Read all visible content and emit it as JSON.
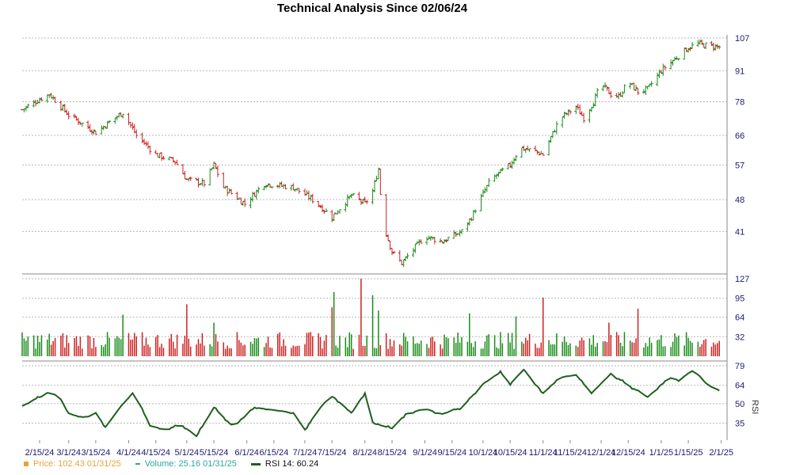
{
  "title": "Technical Analysis Since 02/06/24",
  "colors": {
    "up": "#1a8c1a",
    "down": "#cc2222",
    "rsi": "#1f5f1f",
    "grid": "#b8b8b8",
    "axis_text": "#1a1a6e",
    "price_legend": "#e8a33c",
    "volume_legend": "#2aa6a6"
  },
  "legend": {
    "price": "Price: 102.43  01/31/25",
    "volume": "Volume: 25.16  01/31/25",
    "rsi": "RSI 14: 60.24"
  },
  "chart_data": [
    {
      "type": "ohlc",
      "name": "Price",
      "y_ticks": [
        41,
        48,
        57,
        66,
        78,
        91,
        107
      ],
      "x_tick_labels": [
        "2/15/24",
        "3/1/24",
        "3/15/24",
        "4/1/24",
        "4/15/24",
        "5/1/24",
        "5/15/24",
        "6/1/24",
        "6/15/24",
        "7/1/24",
        "7/15/24",
        "8/1/24",
        "8/15/24",
        "9/1/24",
        "9/15/24",
        "10/1/24",
        "10/15/24",
        "11/1/24",
        "11/15/24",
        "12/1/24",
        "12/15/24",
        "1/1/25",
        "1/15/25",
        "2/1/25"
      ],
      "anchors": [
        {
          "date": "2/6/24",
          "close": 75
        },
        {
          "date": "2/15/24",
          "close": 79
        },
        {
          "date": "2/20/24",
          "close": 81
        },
        {
          "date": "3/1/24",
          "close": 73
        },
        {
          "date": "3/15/24",
          "close": 67
        },
        {
          "date": "3/25/24",
          "close": 72
        },
        {
          "date": "3/29/24",
          "close": 74
        },
        {
          "date": "4/5/24",
          "close": 66
        },
        {
          "date": "4/15/24",
          "close": 60
        },
        {
          "date": "4/25/24",
          "close": 58
        },
        {
          "date": "5/1/24",
          "close": 53
        },
        {
          "date": "5/10/24",
          "close": 52
        },
        {
          "date": "5/15/24",
          "close": 57
        },
        {
          "date": "5/20/24",
          "close": 51
        },
        {
          "date": "5/31/24",
          "close": 47
        },
        {
          "date": "6/10/24",
          "close": 52
        },
        {
          "date": "6/25/24",
          "close": 51
        },
        {
          "date": "7/5/24",
          "close": 48
        },
        {
          "date": "7/15/24",
          "close": 44
        },
        {
          "date": "7/25/24",
          "close": 49
        },
        {
          "date": "8/1/24",
          "close": 47
        },
        {
          "date": "8/5/24",
          "close": 50
        },
        {
          "date": "8/8/24",
          "close": 56
        },
        {
          "date": "8/10/24",
          "close": 43
        },
        {
          "date": "8/15/24",
          "close": 37
        },
        {
          "date": "8/20/24",
          "close": 35
        },
        {
          "date": "9/1/24",
          "close": 40
        },
        {
          "date": "9/10/24",
          "close": 39
        },
        {
          "date": "9/20/24",
          "close": 41
        },
        {
          "date": "9/25/24",
          "close": 44
        },
        {
          "date": "10/5/24",
          "close": 53
        },
        {
          "date": "10/15/24",
          "close": 57
        },
        {
          "date": "10/20/24",
          "close": 62
        },
        {
          "date": "10/28/24",
          "close": 61
        },
        {
          "date": "11/1/24",
          "close": 60
        },
        {
          "date": "11/10/24",
          "close": 72
        },
        {
          "date": "11/18/24",
          "close": 76
        },
        {
          "date": "11/22/24",
          "close": 72
        },
        {
          "date": "11/27/24",
          "close": 78
        },
        {
          "date": "12/1/24",
          "close": 85
        },
        {
          "date": "12/6/24",
          "close": 81
        },
        {
          "date": "12/10/24",
          "close": 80
        },
        {
          "date": "12/15/24",
          "close": 86
        },
        {
          "date": "12/20/24",
          "close": 82
        },
        {
          "date": "12/25/24",
          "close": 83
        },
        {
          "date": "1/1/25",
          "close": 91
        },
        {
          "date": "1/10/25",
          "close": 98
        },
        {
          "date": "1/15/25",
          "close": 102
        },
        {
          "date": "1/20/25",
          "close": 104
        },
        {
          "date": "1/25/25",
          "close": 103
        },
        {
          "date": "1/31/25",
          "close": 102.43
        }
      ]
    },
    {
      "type": "bar",
      "name": "Volume",
      "y_ticks": [
        32,
        64,
        95,
        127
      ],
      "base_range": [
        12,
        40
      ],
      "spikes": [
        {
          "date": "3/29/24",
          "value": 68
        },
        {
          "date": "5/1/24",
          "value": 85
        },
        {
          "date": "5/15/24",
          "value": 55
        },
        {
          "date": "7/15/24",
          "value": 80
        },
        {
          "date": "7/16/24",
          "value": 105
        },
        {
          "date": "7/30/24",
          "value": 127
        },
        {
          "date": "8/5/24",
          "value": 100
        },
        {
          "date": "8/8/24",
          "value": 75
        },
        {
          "date": "9/24/24",
          "value": 70
        },
        {
          "date": "10/18/24",
          "value": 65
        },
        {
          "date": "11/1/24",
          "value": 96
        },
        {
          "date": "11/3/24",
          "value": 75
        },
        {
          "date": "12/20/24",
          "value": 78
        },
        {
          "date": "12/5/24",
          "value": 55
        }
      ],
      "last_value": 25.16
    },
    {
      "type": "line",
      "name": "RSI 14",
      "y_ticks": [
        35,
        50,
        64,
        79
      ],
      "anchors": [
        {
          "date": "2/6/24",
          "v": 48
        },
        {
          "date": "2/12/24",
          "v": 53
        },
        {
          "date": "2/20/24",
          "v": 58
        },
        {
          "date": "2/25/24",
          "v": 56
        },
        {
          "date": "3/1/24",
          "v": 42
        },
        {
          "date": "3/10/24",
          "v": 39
        },
        {
          "date": "3/15/24",
          "v": 43
        },
        {
          "date": "3/20/24",
          "v": 32
        },
        {
          "date": "3/28/24",
          "v": 48
        },
        {
          "date": "4/3/24",
          "v": 58
        },
        {
          "date": "4/8/24",
          "v": 46
        },
        {
          "date": "4/12/24",
          "v": 33
        },
        {
          "date": "4/20/24",
          "v": 30
        },
        {
          "date": "4/28/24",
          "v": 34
        },
        {
          "date": "5/6/24",
          "v": 25
        },
        {
          "date": "5/15/24",
          "v": 47
        },
        {
          "date": "5/25/24",
          "v": 32
        },
        {
          "date": "6/5/24",
          "v": 47
        },
        {
          "date": "6/15/24",
          "v": 45
        },
        {
          "date": "6/25/24",
          "v": 43
        },
        {
          "date": "7/1/24",
          "v": 30
        },
        {
          "date": "7/10/24",
          "v": 49
        },
        {
          "date": "7/15/24",
          "v": 56
        },
        {
          "date": "7/25/24",
          "v": 43
        },
        {
          "date": "8/1/24",
          "v": 58
        },
        {
          "date": "8/5/24",
          "v": 35
        },
        {
          "date": "8/15/24",
          "v": 31
        },
        {
          "date": "8/22/24",
          "v": 42
        },
        {
          "date": "9/1/24",
          "v": 46
        },
        {
          "date": "9/10/24",
          "v": 42
        },
        {
          "date": "9/20/24",
          "v": 47
        },
        {
          "date": "10/1/24",
          "v": 65
        },
        {
          "date": "10/10/24",
          "v": 74
        },
        {
          "date": "10/15/24",
          "v": 65
        },
        {
          "date": "10/22/24",
          "v": 76
        },
        {
          "date": "11/1/24",
          "v": 58
        },
        {
          "date": "11/10/24",
          "v": 70
        },
        {
          "date": "11/18/24",
          "v": 72
        },
        {
          "date": "11/26/24",
          "v": 58
        },
        {
          "date": "12/6/24",
          "v": 73
        },
        {
          "date": "12/15/24",
          "v": 64
        },
        {
          "date": "12/25/24",
          "v": 55
        },
        {
          "date": "1/5/25",
          "v": 70
        },
        {
          "date": "1/10/25",
          "v": 68
        },
        {
          "date": "1/18/25",
          "v": 76
        },
        {
          "date": "1/25/25",
          "v": 64
        },
        {
          "date": "1/31/25",
          "v": 60.24
        }
      ],
      "last_value": 60.24
    }
  ]
}
